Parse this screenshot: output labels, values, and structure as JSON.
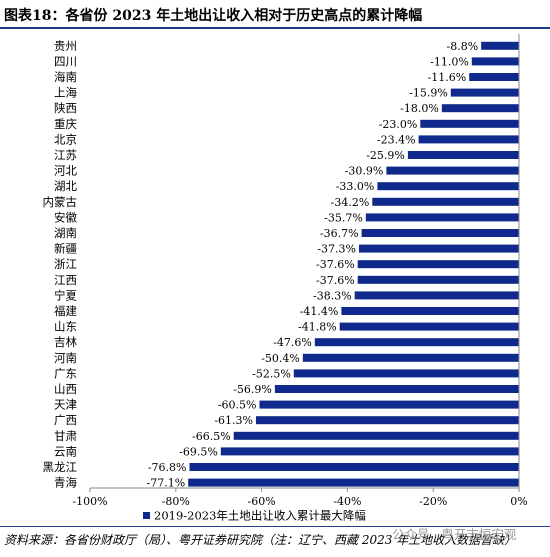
{
  "title": "图表18：各省份 2023 年土地出让收入相对于历史高点的累计降幅",
  "source": "资料来源：各省份财政厅（局）、粤开证券研究院（注：辽宁、西藏 2023 年土地收入数据暂缺）",
  "watermark": "公众号 · 粤开志恒宏观",
  "chart_data": {
    "type": "bar",
    "orientation": "horizontal",
    "categories": [
      "贵州",
      "四川",
      "海南",
      "上海",
      "陕西",
      "重庆",
      "北京",
      "江苏",
      "河北",
      "湖北",
      "内蒙古",
      "安徽",
      "湖南",
      "新疆",
      "浙江",
      "江西",
      "宁夏",
      "福建",
      "山东",
      "吉林",
      "河南",
      "广东",
      "山西",
      "天津",
      "广西",
      "甘肃",
      "云南",
      "黑龙江",
      "青海"
    ],
    "series": [
      {
        "name": "2019-2023年土地出让收入累计最大降幅",
        "values": [
          -8.8,
          -11.0,
          -11.6,
          -15.9,
          -18.0,
          -23.0,
          -23.4,
          -25.9,
          -30.9,
          -33.0,
          -34.2,
          -35.7,
          -36.7,
          -37.3,
          -37.6,
          -37.6,
          -38.3,
          -41.4,
          -41.8,
          -47.6,
          -50.4,
          -52.5,
          -56.9,
          -60.5,
          -61.3,
          -66.5,
          -69.5,
          -76.8,
          -77.1
        ]
      }
    ],
    "value_labels": [
      "-8.8%",
      "-11.0%",
      "-11.6%",
      "-15.9%",
      "-18.0%",
      "-23.0%",
      "-23.4%",
      "-25.9%",
      "-30.9%",
      "-33.0%",
      "-34.2%",
      "-35.7%",
      "-36.7%",
      "-37.3%",
      "-37.6%",
      "-37.6%",
      "-38.3%",
      "-41.4%",
      "-41.8%",
      "-47.6%",
      "-50.4%",
      "-52.5%",
      "-56.9%",
      "-60.5%",
      "-61.3%",
      "-66.5%",
      "-69.5%",
      "-76.8%",
      "-77.1%"
    ],
    "xlim": [
      -100,
      0
    ],
    "x_ticks": [
      -100,
      -80,
      -60,
      -40,
      -20,
      0
    ],
    "x_tick_labels": [
      "-100%",
      "-80%",
      "-60%",
      "-40%",
      "-20%",
      "0%"
    ],
    "legend_position": "bottom",
    "bar_color": "#0f2a8c",
    "grid": false
  }
}
